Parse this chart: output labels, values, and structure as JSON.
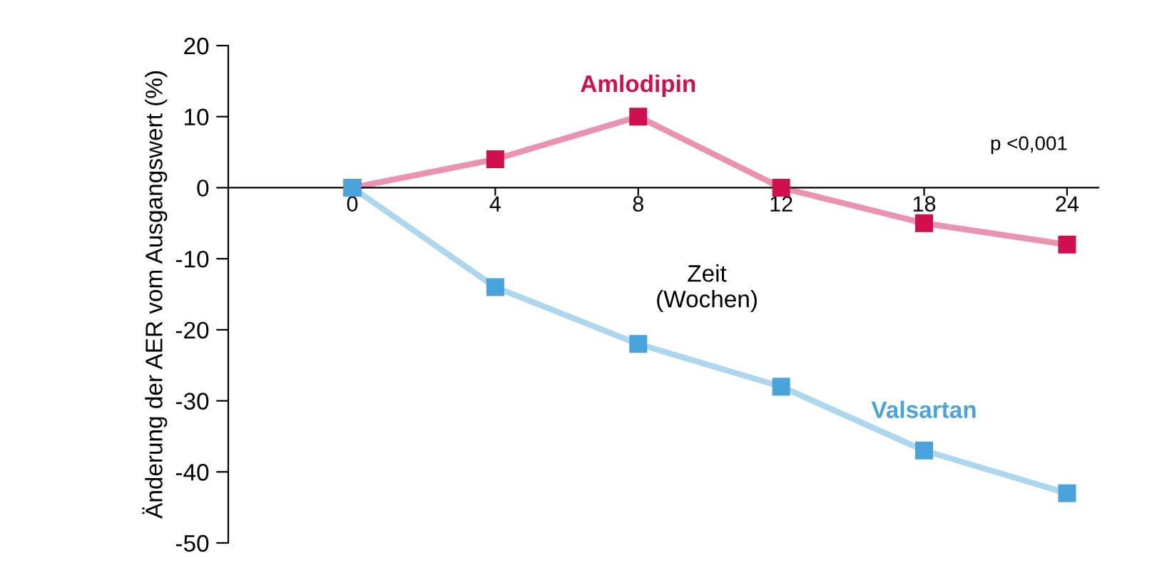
{
  "chart_data": {
    "type": "line",
    "ylabel": "Änderung der AER vom Ausgangswert (%)",
    "xlabel": "Zeit\n(Wochen)",
    "categories": [
      "0",
      "4",
      "8",
      "12",
      "18",
      "24"
    ],
    "series": [
      {
        "name": "Amlodipin",
        "color": "#d0104c",
        "values": [
          0,
          4,
          10,
          0,
          -5,
          -8
        ]
      },
      {
        "name": "Valsartan",
        "color": "#4aa3db",
        "values": [
          0,
          -14,
          -22,
          -28,
          -37,
          -43
        ]
      }
    ],
    "ylim": [
      -50,
      20
    ],
    "yticks": [
      -50,
      -40,
      -30,
      -20,
      -10,
      0,
      10,
      20
    ],
    "annotations": [
      "p <0,001"
    ],
    "marker": "square",
    "line_style": "solid",
    "grid": false,
    "legend": false
  }
}
